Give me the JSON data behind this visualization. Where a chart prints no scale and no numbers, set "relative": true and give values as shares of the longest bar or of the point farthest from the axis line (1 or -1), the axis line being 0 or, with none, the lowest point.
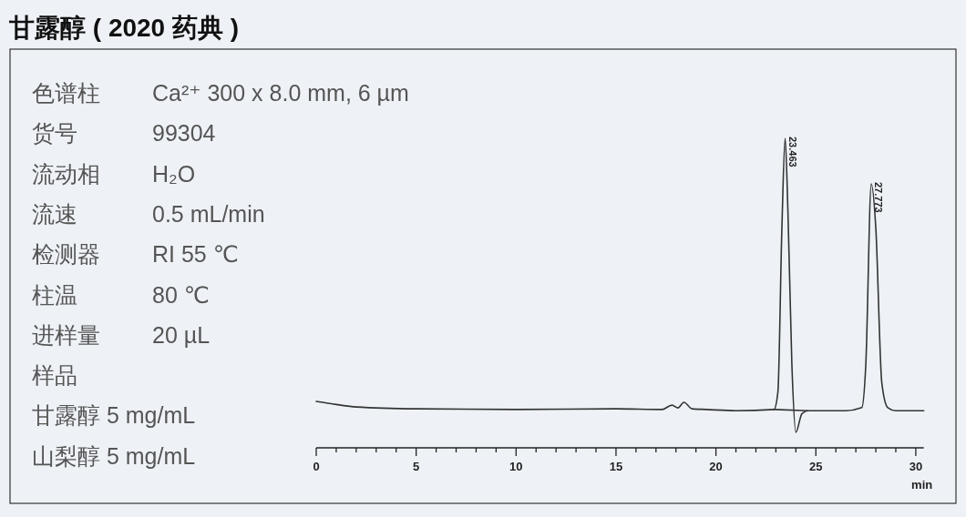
{
  "chart_data": {
    "type": "line",
    "title": "甘露醇 ( 2020 药典 )",
    "xlabel": "min",
    "relative": true,
    "xlim": [
      0,
      30.4
    ],
    "xticks": [
      0,
      {
        "value": 1,
        "label": null
      },
      {
        "value": 2,
        "label": null
      },
      {
        "value": 3,
        "label": null
      },
      {
        "value": 4,
        "label": null
      },
      5,
      {
        "value": 6,
        "label": null
      },
      {
        "value": 7,
        "label": null
      },
      {
        "value": 8,
        "label": null
      },
      {
        "value": 9,
        "label": null
      },
      10,
      {
        "value": 11,
        "label": null
      },
      {
        "value": 12,
        "label": null
      },
      {
        "value": 13,
        "label": null
      },
      {
        "value": 14,
        "label": null
      },
      15,
      {
        "value": 16,
        "label": null
      },
      {
        "value": 17,
        "label": null
      },
      {
        "value": 18,
        "label": null
      },
      {
        "value": 19,
        "label": null
      },
      20,
      {
        "value": 21,
        "label": null
      },
      {
        "value": 22,
        "label": null
      },
      {
        "value": 23,
        "label": null
      },
      {
        "value": 24,
        "label": null
      },
      25,
      {
        "value": 26,
        "label": null
      },
      {
        "value": 27,
        "label": null
      },
      {
        "value": 28,
        "label": null
      },
      {
        "value": 29,
        "label": null
      },
      30
    ],
    "series": [
      {
        "color": "#333333",
        "x": [
          0,
          1,
          2,
          5,
          10,
          15,
          17.3,
          17.8,
          18.1,
          18.4,
          18.8,
          19.5,
          21,
          22.9,
          23.1,
          23.3,
          23.463,
          23.6,
          23.8,
          24.0,
          24.3,
          24.6,
          26.5,
          27.3,
          27.5,
          27.773,
          28.0,
          28.3,
          28.6,
          29,
          30.4
        ],
        "values": [
          0.15,
          0.14,
          0.132,
          0.126,
          0.124,
          0.126,
          0.124,
          0.138,
          0.129,
          0.147,
          0.126,
          0.124,
          0.12,
          0.124,
          0.18,
          0.71,
          1.0,
          0.77,
          0.27,
          0.05,
          0.11,
          0.12,
          0.12,
          0.13,
          0.27,
          0.853,
          0.71,
          0.21,
          0.13,
          0.12,
          0.12
        ]
      },
      {
        "color": "#333333",
        "x": [
          22.9,
          24.6
        ],
        "values": [
          0.124,
          0.12
        ]
      }
    ],
    "annotations": [
      {
        "text": "23.463",
        "x": 23.463,
        "y": 1.0
      },
      {
        "text": "27.773",
        "x": 27.773,
        "y": 0.853
      },
      "色谱柱",
      "Ca²⁺ 300 x 8.0 mm, 6 µm",
      "货号",
      "99304",
      "流动相",
      "H₂O",
      "流速",
      "0.5 mL/min",
      "检测器",
      "RI  55 ℃",
      "柱温",
      "80 ℃",
      "进样量",
      "20 µL",
      "样品",
      "甘露醇 5 mg/mL",
      "山梨醇 5 mg/mL"
    ],
    "line_style": "solid",
    "marker": "none",
    "grid": false
  }
}
